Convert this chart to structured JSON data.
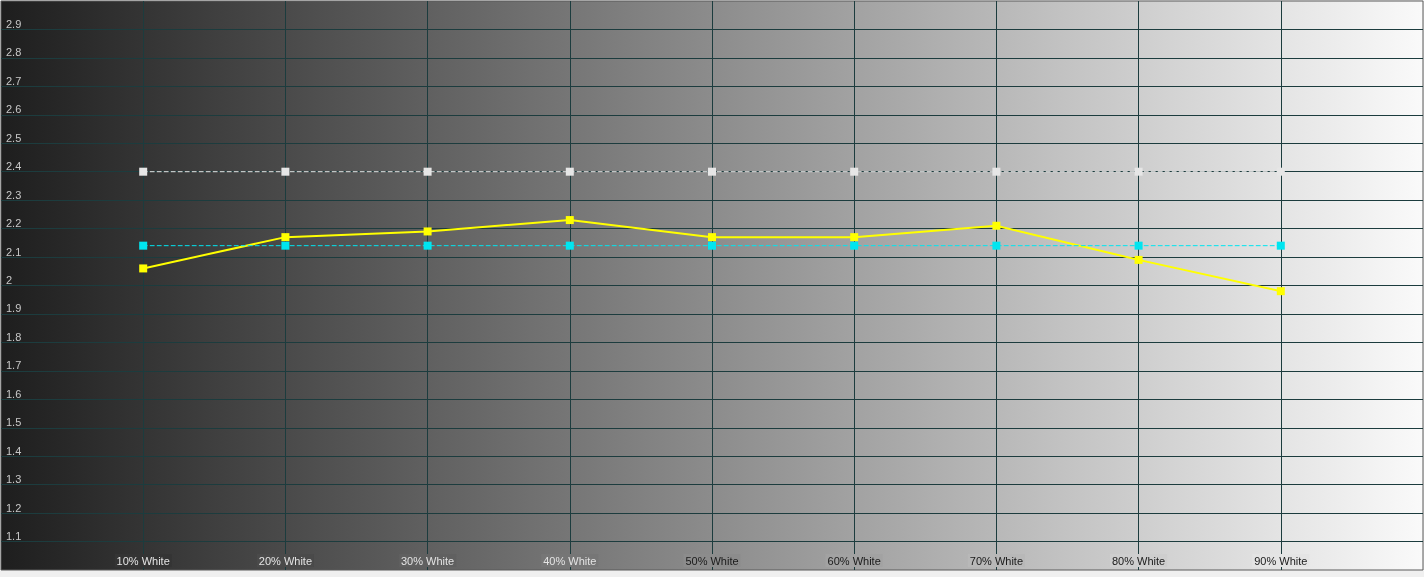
{
  "chart_data": {
    "type": "line",
    "x": [
      10,
      20,
      30,
      40,
      50,
      60,
      70,
      80,
      90
    ],
    "xlim": [
      0,
      100
    ],
    "xticks": [
      {
        "value": 10,
        "label": "10% White"
      },
      {
        "value": 20,
        "label": "20% White"
      },
      {
        "value": 30,
        "label": "30% White"
      },
      {
        "value": 40,
        "label": "40% White"
      },
      {
        "value": 50,
        "label": "50% White"
      },
      {
        "value": 60,
        "label": "60% White"
      },
      {
        "value": 70,
        "label": "70% White"
      },
      {
        "value": 80,
        "label": "80% White"
      },
      {
        "value": 90,
        "label": "90% White"
      }
    ],
    "ylim": [
      1,
      3
    ],
    "yticks": [
      1.1,
      1.2,
      1.3,
      1.4,
      1.5,
      1.6,
      1.7,
      1.8,
      1.9,
      2,
      2.1,
      2.2,
      2.3,
      2.4,
      2.5,
      2.6,
      2.7,
      2.8,
      2.9
    ],
    "grid": true,
    "marker": "square",
    "series": [
      {
        "color": "#ffff00",
        "line_style": "solid",
        "values": [
          2.06,
          2.17,
          2.19,
          2.23,
          2.17,
          2.17,
          2.21,
          2.09,
          1.98
        ]
      },
      {
        "color": "#00e5f0",
        "line_style": "dashed",
        "values": [
          2.14,
          2.14,
          2.14,
          2.14,
          2.14,
          2.14,
          2.14,
          2.14,
          2.14
        ]
      },
      {
        "color": "#e6e6e6",
        "line_style": "dashed",
        "values": [
          2.4,
          2.4,
          2.4,
          2.4,
          2.4,
          2.4,
          2.4,
          2.4,
          2.4
        ]
      }
    ]
  }
}
